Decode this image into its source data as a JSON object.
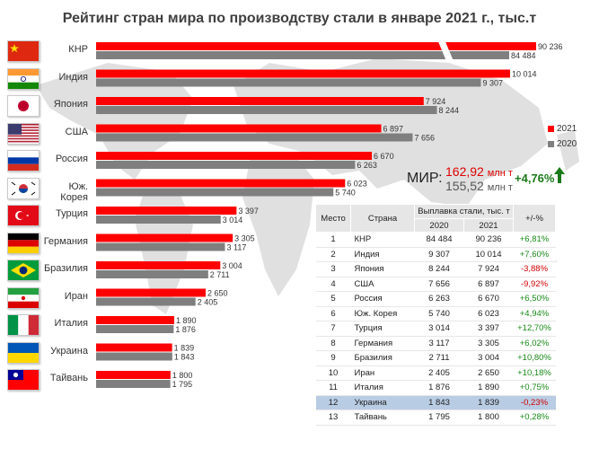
{
  "title": "Рейтинг стран мира по производству стали в январе 2021 г., тыс.т",
  "legend": {
    "items": [
      {
        "label": "2021",
        "color": "#ff0000"
      },
      {
        "label": "2020",
        "color": "#7f7f7f"
      }
    ]
  },
  "world": {
    "label": "МИР:",
    "v2021": "162,92",
    "v2020": "155,52",
    "unit": "млн т",
    "change": "+4,76%"
  },
  "chart_data": {
    "type": "bar",
    "orientation": "horizontal",
    "title": "Рейтинг стран мира по производству стали в январе 2021 г., тыс.т",
    "categories": [
      "КНР",
      "Индия",
      "Япония",
      "США",
      "Россия",
      "Юж. Корея",
      "Турция",
      "Германия",
      "Бразилия",
      "Иран",
      "Италия",
      "Украина",
      "Тайвань"
    ],
    "series": [
      {
        "name": "2021",
        "color": "#ff0000",
        "values": [
          90236,
          10014,
          7924,
          6897,
          6670,
          6023,
          3397,
          3305,
          3004,
          2650,
          1890,
          1839,
          1800
        ],
        "labels": [
          "90 236",
          "10 014",
          "7 924",
          "6 897",
          "6 670",
          "6 023",
          "3 397",
          "3 305",
          "3 004",
          "2 650",
          "1 890",
          "1 839",
          "1 800"
        ]
      },
      {
        "name": "2020",
        "color": "#7f7f7f",
        "values": [
          84484,
          9307,
          8244,
          7656,
          6263,
          5740,
          3014,
          3117,
          2711,
          2405,
          1876,
          1843,
          1795
        ],
        "labels": [
          "84 484",
          "9 307",
          "8 244",
          "7 656",
          "6 263",
          "5 740",
          "3 014",
          "3 117",
          "2 711",
          "2 405",
          "1 876",
          "1 843",
          "1 795"
        ]
      }
    ],
    "axis_break": "first category bars are broken (truncated) to fit",
    "grid": false,
    "legend_position": "right"
  },
  "table": {
    "headers": {
      "place": "Место",
      "country": "Страна",
      "group": "Выплавка стали, тыс. т",
      "y2020": "2020",
      "y2021": "2021",
      "pct": "+/-%"
    },
    "rows": [
      {
        "place": "1",
        "country": "КНР",
        "y2020": "84 484",
        "y2021": "90 236",
        "pct": "+6,81%",
        "trend": "pos"
      },
      {
        "place": "2",
        "country": "Индия",
        "y2020": "9 307",
        "y2021": "10 014",
        "pct": "+7,60%",
        "trend": "pos"
      },
      {
        "place": "3",
        "country": "Япония",
        "y2020": "8 244",
        "y2021": "7 924",
        "pct": "-3,88%",
        "trend": "neg"
      },
      {
        "place": "4",
        "country": "США",
        "y2020": "7 656",
        "y2021": "6 897",
        "pct": "-9,92%",
        "trend": "neg"
      },
      {
        "place": "5",
        "country": "Россия",
        "y2020": "6 263",
        "y2021": "6 670",
        "pct": "+6,50%",
        "trend": "pos"
      },
      {
        "place": "6",
        "country": "Юж. Корея",
        "y2020": "5 740",
        "y2021": "6 023",
        "pct": "+4,94%",
        "trend": "pos"
      },
      {
        "place": "7",
        "country": "Турция",
        "y2020": "3 014",
        "y2021": "3 397",
        "pct": "+12,70%",
        "trend": "pos"
      },
      {
        "place": "8",
        "country": "Германия",
        "y2020": "3 117",
        "y2021": "3 305",
        "pct": "+6,02%",
        "trend": "pos"
      },
      {
        "place": "9",
        "country": "Бразилия",
        "y2020": "2 711",
        "y2021": "3 004",
        "pct": "+10,80%",
        "trend": "pos"
      },
      {
        "place": "10",
        "country": "Иран",
        "y2020": "2 405",
        "y2021": "2 650",
        "pct": "+10,18%",
        "trend": "pos"
      },
      {
        "place": "11",
        "country": "Италия",
        "y2020": "1 876",
        "y2021": "1 890",
        "pct": "+0,75%",
        "trend": "pos"
      },
      {
        "place": "12",
        "country": "Украина",
        "y2020": "1 843",
        "y2021": "1 839",
        "pct": "-0,23%",
        "trend": "neg",
        "highlight": true
      },
      {
        "place": "13",
        "country": "Тайвань",
        "y2020": "1 795",
        "y2021": "1 800",
        "pct": "+0,28%",
        "trend": "pos"
      }
    ]
  },
  "flags": [
    "china-flag-icon",
    "india-flag-icon",
    "japan-flag-icon",
    "usa-flag-icon",
    "russia-flag-icon",
    "south-korea-flag-icon",
    "turkey-flag-icon",
    "germany-flag-icon",
    "brazil-flag-icon",
    "iran-flag-icon",
    "italy-flag-icon",
    "ukraine-flag-icon",
    "taiwan-flag-icon"
  ]
}
